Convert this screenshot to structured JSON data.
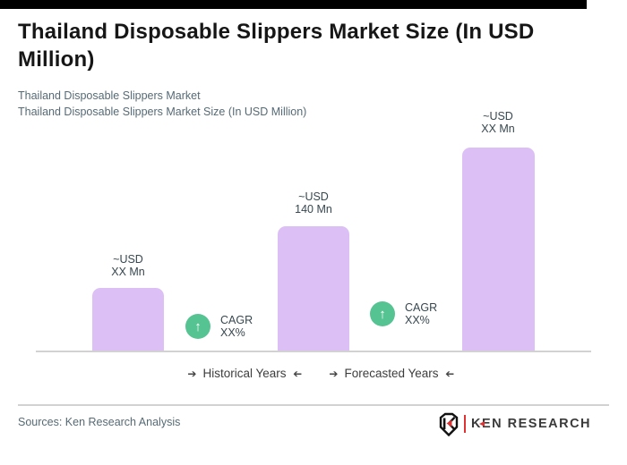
{
  "page": {
    "background": "#ffffff",
    "top_bar_color": "#000000"
  },
  "header": {
    "title": "Thailand Disposable Slippers Market Size (In USD Million)",
    "subtitle_line1": "Thailand Disposable Slippers Market",
    "subtitle_line2": "Thailand Disposable Slippers Market Size (In USD Million)"
  },
  "chart_data": {
    "type": "bar",
    "title": "Thailand Disposable Slippers Market Size (In USD Million)",
    "unit": "USD Million",
    "bar_color": "#dcc0f5",
    "badge_color": "#56c392",
    "axis_line_color": "#d2d2d2",
    "bars": [
      {
        "label_line1": "~USD",
        "label_line2": "XX Mn",
        "value": "XX",
        "relative_height": 71
      },
      {
        "label_line1": "~USD",
        "label_line2": "140 Mn",
        "value": 140,
        "relative_height": 140
      },
      {
        "label_line1": "~USD",
        "label_line2": "XX Mn",
        "value": "XX",
        "relative_height": 228
      }
    ],
    "cagr_badges": [
      {
        "line1": "CAGR",
        "line2": "XX%"
      },
      {
        "line1": "CAGR",
        "line2": "XX%"
      }
    ],
    "x_groups": [
      {
        "label": "Historical Years"
      },
      {
        "label": "Forecasted Years"
      }
    ]
  },
  "icons": {
    "up_arrow": "↑",
    "arrow": "➔"
  },
  "footer": {
    "sources": "Sources: Ken Research Analysis",
    "logo_text": "KEN RESEARCH"
  }
}
